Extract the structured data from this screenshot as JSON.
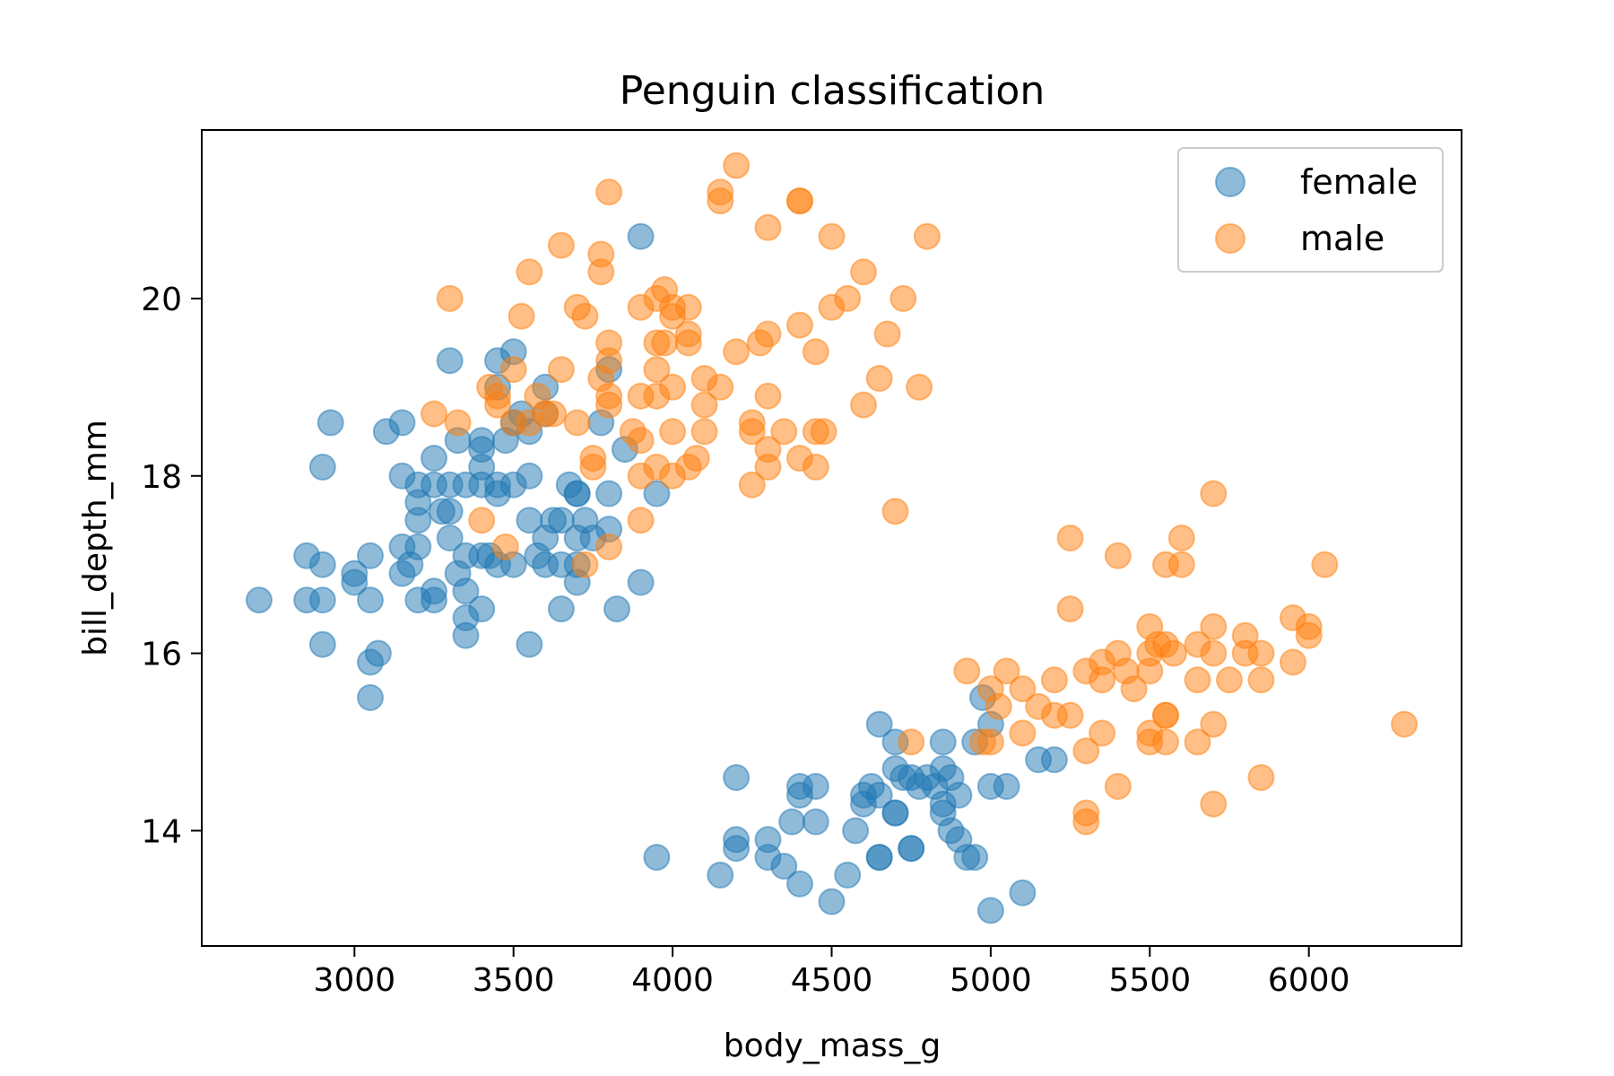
{
  "chart_data": {
    "type": "scatter",
    "title": "Penguin classification",
    "xlabel": "body_mass_g",
    "ylabel": "bill_depth_mm",
    "xlim": [
      2520,
      6480
    ],
    "ylim": [
      12.7,
      21.9
    ],
    "xticks": [
      3000,
      3500,
      4000,
      4500,
      5000,
      5500,
      6000
    ],
    "yticks": [
      14,
      16,
      18,
      20
    ],
    "grid": false,
    "legend_position": "top-right",
    "series": [
      {
        "name": "female",
        "color": "#1f77b4",
        "points": [
          [
            2700,
            16.6
          ],
          [
            2850,
            17.1
          ],
          [
            2850,
            16.6
          ],
          [
            2900,
            17.0
          ],
          [
            2900,
            16.6
          ],
          [
            2900,
            16.1
          ],
          [
            2900,
            18.1
          ],
          [
            2925,
            18.6
          ],
          [
            3000,
            16.9
          ],
          [
            3000,
            16.8
          ],
          [
            3050,
            16.6
          ],
          [
            3050,
            15.9
          ],
          [
            3050,
            15.5
          ],
          [
            3050,
            17.1
          ],
          [
            3075,
            16.0
          ],
          [
            3100,
            18.5
          ],
          [
            3150,
            18.6
          ],
          [
            3150,
            18.0
          ],
          [
            3150,
            17.2
          ],
          [
            3150,
            16.9
          ],
          [
            3175,
            17.0
          ],
          [
            3200,
            17.5
          ],
          [
            3200,
            17.7
          ],
          [
            3200,
            17.2
          ],
          [
            3200,
            16.6
          ],
          [
            3200,
            17.9
          ],
          [
            3250,
            18.2
          ],
          [
            3250,
            17.9
          ],
          [
            3250,
            16.7
          ],
          [
            3250,
            16.6
          ],
          [
            3275,
            17.6
          ],
          [
            3300,
            19.3
          ],
          [
            3300,
            17.9
          ],
          [
            3300,
            17.3
          ],
          [
            3300,
            17.6
          ],
          [
            3325,
            16.9
          ],
          [
            3325,
            18.4
          ],
          [
            3350,
            16.4
          ],
          [
            3350,
            17.9
          ],
          [
            3350,
            17.1
          ],
          [
            3350,
            16.7
          ],
          [
            3350,
            16.2
          ],
          [
            3400,
            18.3
          ],
          [
            3400,
            17.1
          ],
          [
            3400,
            16.5
          ],
          [
            3400,
            18.4
          ],
          [
            3400,
            18.1
          ],
          [
            3400,
            17.9
          ],
          [
            3425,
            17.1
          ],
          [
            3450,
            19.3
          ],
          [
            3450,
            19.0
          ],
          [
            3450,
            17.9
          ],
          [
            3450,
            17.8
          ],
          [
            3450,
            17.0
          ],
          [
            3475,
            18.4
          ],
          [
            3500,
            18.6
          ],
          [
            3500,
            19.4
          ],
          [
            3500,
            17.9
          ],
          [
            3500,
            17.0
          ],
          [
            3525,
            18.7
          ],
          [
            3550,
            18.0
          ],
          [
            3550,
            17.5
          ],
          [
            3550,
            16.1
          ],
          [
            3550,
            18.5
          ],
          [
            3575,
            17.1
          ],
          [
            3600,
            19.0
          ],
          [
            3600,
            18.7
          ],
          [
            3600,
            17.3
          ],
          [
            3600,
            17.0
          ],
          [
            3625,
            17.5
          ],
          [
            3650,
            17.5
          ],
          [
            3650,
            17.0
          ],
          [
            3650,
            16.5
          ],
          [
            3675,
            17.9
          ],
          [
            3700,
            17.8
          ],
          [
            3700,
            17.8
          ],
          [
            3700,
            17.3
          ],
          [
            3700,
            17.0
          ],
          [
            3700,
            16.8
          ],
          [
            3725,
            17.5
          ],
          [
            3750,
            17.3
          ],
          [
            3775,
            18.6
          ],
          [
            3800,
            19.2
          ],
          [
            3800,
            17.8
          ],
          [
            3800,
            17.4
          ],
          [
            3825,
            16.5
          ],
          [
            3850,
            18.3
          ],
          [
            3900,
            16.8
          ],
          [
            3900,
            20.7
          ],
          [
            3950,
            17.8
          ],
          [
            3950,
            13.7
          ],
          [
            4150,
            13.5
          ],
          [
            4200,
            13.9
          ],
          [
            4200,
            13.8
          ],
          [
            4200,
            14.6
          ],
          [
            4300,
            13.9
          ],
          [
            4300,
            13.7
          ],
          [
            4350,
            13.6
          ],
          [
            4375,
            14.1
          ],
          [
            4400,
            14.5
          ],
          [
            4400,
            14.4
          ],
          [
            4400,
            13.4
          ],
          [
            4450,
            14.5
          ],
          [
            4450,
            14.1
          ],
          [
            4500,
            13.2
          ],
          [
            4550,
            13.5
          ],
          [
            4575,
            14.0
          ],
          [
            4600,
            14.3
          ],
          [
            4600,
            14.4
          ],
          [
            4625,
            14.5
          ],
          [
            4650,
            15.2
          ],
          [
            4650,
            14.4
          ],
          [
            4650,
            13.7
          ],
          [
            4650,
            13.7
          ],
          [
            4700,
            15.0
          ],
          [
            4700,
            14.7
          ],
          [
            4700,
            14.2
          ],
          [
            4700,
            14.2
          ],
          [
            4725,
            14.6
          ],
          [
            4750,
            13.8
          ],
          [
            4750,
            13.8
          ],
          [
            4750,
            14.6
          ],
          [
            4775,
            14.5
          ],
          [
            4800,
            14.6
          ],
          [
            4825,
            14.5
          ],
          [
            4850,
            15.0
          ],
          [
            4850,
            14.7
          ],
          [
            4850,
            14.3
          ],
          [
            4850,
            14.2
          ],
          [
            4875,
            14.0
          ],
          [
            4875,
            14.6
          ],
          [
            4900,
            13.9
          ],
          [
            4900,
            14.4
          ],
          [
            4925,
            13.7
          ],
          [
            4950,
            13.7
          ],
          [
            4950,
            15.0
          ],
          [
            4975,
            15.5
          ],
          [
            5000,
            15.2
          ],
          [
            5000,
            14.5
          ],
          [
            5000,
            13.1
          ],
          [
            5050,
            14.5
          ],
          [
            5100,
            13.3
          ],
          [
            5150,
            14.8
          ],
          [
            5200,
            14.8
          ]
        ]
      },
      {
        "name": "male",
        "color": "#ff7f0e",
        "points": [
          [
            3250,
            18.7
          ],
          [
            3300,
            20.0
          ],
          [
            3325,
            18.6
          ],
          [
            3400,
            17.5
          ],
          [
            3425,
            19.0
          ],
          [
            3450,
            18.8
          ],
          [
            3450,
            18.9
          ],
          [
            3475,
            17.2
          ],
          [
            3500,
            19.2
          ],
          [
            3500,
            18.6
          ],
          [
            3525,
            19.8
          ],
          [
            3550,
            20.3
          ],
          [
            3550,
            18.6
          ],
          [
            3575,
            18.9
          ],
          [
            3600,
            18.7
          ],
          [
            3625,
            18.7
          ],
          [
            3650,
            20.6
          ],
          [
            3650,
            19.2
          ],
          [
            3700,
            19.9
          ],
          [
            3700,
            18.6
          ],
          [
            3725,
            19.8
          ],
          [
            3725,
            17.0
          ],
          [
            3750,
            18.2
          ],
          [
            3750,
            18.1
          ],
          [
            3775,
            20.5
          ],
          [
            3775,
            20.3
          ],
          [
            3775,
            19.1
          ],
          [
            3800,
            21.2
          ],
          [
            3800,
            19.5
          ],
          [
            3800,
            19.3
          ],
          [
            3800,
            18.9
          ],
          [
            3800,
            18.8
          ],
          [
            3800,
            17.2
          ],
          [
            3875,
            18.5
          ],
          [
            3900,
            19.9
          ],
          [
            3900,
            18.9
          ],
          [
            3900,
            18.4
          ],
          [
            3900,
            18.0
          ],
          [
            3900,
            17.5
          ],
          [
            3950,
            20.0
          ],
          [
            3950,
            19.5
          ],
          [
            3950,
            19.2
          ],
          [
            3950,
            18.9
          ],
          [
            3950,
            18.1
          ],
          [
            3975,
            20.1
          ],
          [
            3975,
            19.5
          ],
          [
            4000,
            19.9
          ],
          [
            4000,
            19.8
          ],
          [
            4000,
            19.0
          ],
          [
            4000,
            18.5
          ],
          [
            4000,
            18.0
          ],
          [
            4050,
            19.9
          ],
          [
            4050,
            19.6
          ],
          [
            4050,
            19.5
          ],
          [
            4050,
            18.1
          ],
          [
            4075,
            18.2
          ],
          [
            4100,
            19.1
          ],
          [
            4100,
            18.8
          ],
          [
            4100,
            18.5
          ],
          [
            4150,
            21.2
          ],
          [
            4150,
            21.1
          ],
          [
            4150,
            19.0
          ],
          [
            4200,
            21.5
          ],
          [
            4200,
            19.4
          ],
          [
            4250,
            18.6
          ],
          [
            4250,
            18.5
          ],
          [
            4250,
            17.9
          ],
          [
            4275,
            19.5
          ],
          [
            4300,
            20.8
          ],
          [
            4300,
            19.6
          ],
          [
            4300,
            18.9
          ],
          [
            4300,
            18.3
          ],
          [
            4300,
            18.1
          ],
          [
            4350,
            18.5
          ],
          [
            4400,
            21.1
          ],
          [
            4400,
            21.1
          ],
          [
            4400,
            19.7
          ],
          [
            4400,
            18.2
          ],
          [
            4450,
            19.4
          ],
          [
            4450,
            18.5
          ],
          [
            4450,
            18.1
          ],
          [
            4475,
            18.5
          ],
          [
            4500,
            20.7
          ],
          [
            4500,
            19.9
          ],
          [
            4550,
            20.0
          ],
          [
            4600,
            20.3
          ],
          [
            4600,
            18.8
          ],
          [
            4650,
            19.1
          ],
          [
            4675,
            19.6
          ],
          [
            4700,
            17.6
          ],
          [
            4725,
            20.0
          ],
          [
            4775,
            19.0
          ],
          [
            4800,
            20.7
          ],
          [
            4750,
            15.0
          ],
          [
            4925,
            15.8
          ],
          [
            4975,
            15.0
          ],
          [
            5000,
            15.6
          ],
          [
            5000,
            15.0
          ],
          [
            5025,
            15.4
          ],
          [
            5050,
            15.8
          ],
          [
            5100,
            15.6
          ],
          [
            5100,
            15.1
          ],
          [
            5150,
            15.4
          ],
          [
            5200,
            15.7
          ],
          [
            5200,
            15.3
          ],
          [
            5250,
            17.3
          ],
          [
            5250,
            16.5
          ],
          [
            5250,
            15.3
          ],
          [
            5300,
            15.8
          ],
          [
            5300,
            14.9
          ],
          [
            5300,
            14.2
          ],
          [
            5300,
            14.1
          ],
          [
            5350,
            15.9
          ],
          [
            5350,
            15.7
          ],
          [
            5350,
            15.1
          ],
          [
            5400,
            17.1
          ],
          [
            5400,
            16.0
          ],
          [
            5400,
            14.5
          ],
          [
            5425,
            15.8
          ],
          [
            5450,
            15.6
          ],
          [
            5500,
            16.3
          ],
          [
            5500,
            16.0
          ],
          [
            5500,
            15.8
          ],
          [
            5500,
            15.1
          ],
          [
            5500,
            15.0
          ],
          [
            5525,
            16.1
          ],
          [
            5550,
            17.0
          ],
          [
            5550,
            16.1
          ],
          [
            5550,
            15.3
          ],
          [
            5550,
            15.3
          ],
          [
            5550,
            15.0
          ],
          [
            5575,
            16.0
          ],
          [
            5600,
            17.3
          ],
          [
            5600,
            17.0
          ],
          [
            5650,
            16.1
          ],
          [
            5650,
            15.7
          ],
          [
            5650,
            15.0
          ],
          [
            5700,
            17.8
          ],
          [
            5700,
            16.3
          ],
          [
            5700,
            16.0
          ],
          [
            5700,
            15.2
          ],
          [
            5700,
            14.3
          ],
          [
            5750,
            15.7
          ],
          [
            5800,
            16.2
          ],
          [
            5800,
            16.0
          ],
          [
            5850,
            16.0
          ],
          [
            5850,
            15.7
          ],
          [
            5850,
            14.6
          ],
          [
            5950,
            16.4
          ],
          [
            5950,
            15.9
          ],
          [
            6000,
            16.3
          ],
          [
            6000,
            16.2
          ],
          [
            6050,
            17.0
          ],
          [
            6300,
            15.2
          ]
        ]
      }
    ]
  }
}
